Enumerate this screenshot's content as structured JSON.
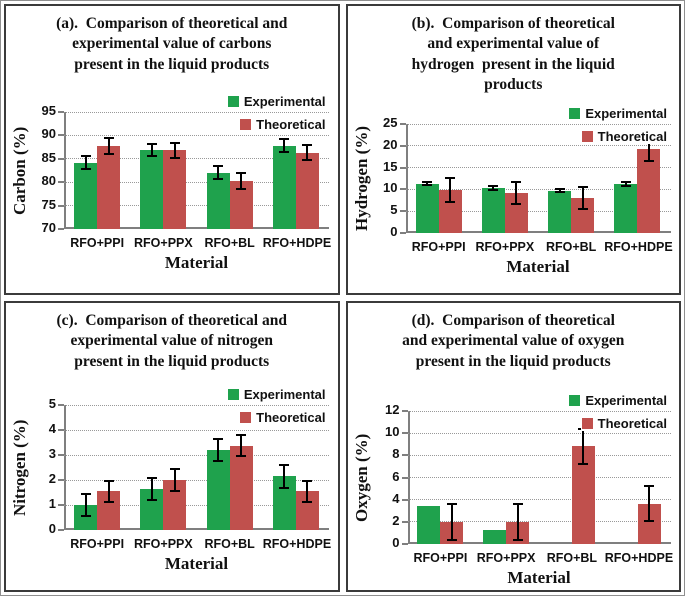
{
  "figure": {
    "legend_labels": [
      "Experimental",
      "Theoretical"
    ],
    "colors": {
      "experimental": "#1FA24D",
      "theoretical": "#C0504D",
      "error_bar": "#000000",
      "gridline": "#999999",
      "axis": "#7F7F7F",
      "panel_border": "#3B3B3B",
      "outer_border": "#8F8F8F"
    }
  },
  "chart_data": [
    {
      "id": "a",
      "type": "bar",
      "title": "(a).  Comparison of theoretical and\nexperimental value of carbons\npresent in the liquid products",
      "xlabel": "Material",
      "ylabel": "Carbon (%)",
      "ylim": [
        70,
        95
      ],
      "yticks": [
        70,
        75,
        80,
        85,
        90,
        95
      ],
      "grid": true,
      "legend_position": "top-right",
      "categories": [
        "RFO+PPI",
        "RFO+PPX",
        "RFO+BL",
        "RFO+HDPE"
      ],
      "series": [
        {
          "name": "Experimental",
          "values": [
            84.2,
            86.8,
            82.0,
            87.8
          ],
          "errors": [
            1.3,
            1.3,
            1.4,
            1.4
          ]
        },
        {
          "name": "Theoretical",
          "values": [
            87.8,
            86.8,
            80.3,
            86.3
          ],
          "errors": [
            1.7,
            1.6,
            1.7,
            1.6
          ]
        }
      ]
    },
    {
      "id": "b",
      "type": "bar",
      "title": "(b).  Comparison of theoretical\nand experimental value of\nhydrogen  present in the liquid\nproducts",
      "xlabel": "Material",
      "ylabel": "Hydrogen (%)",
      "ylim": [
        0,
        25
      ],
      "yticks": [
        0,
        5,
        10,
        15,
        20,
        25
      ],
      "grid": true,
      "legend_position": "top-right",
      "categories": [
        "RFO+PPI",
        "RFO+PPX",
        "RFO+BL",
        "RFO+HDPE"
      ],
      "series": [
        {
          "name": "Experimental",
          "values": [
            11.3,
            10.3,
            9.7,
            11.2
          ],
          "errors": [
            0.4,
            0.5,
            0.4,
            0.4
          ]
        },
        {
          "name": "Theoretical",
          "values": [
            9.9,
            9.2,
            8.0,
            19.2
          ],
          "errors": [
            2.7,
            2.6,
            2.6,
            2.6
          ]
        }
      ]
    },
    {
      "id": "c",
      "type": "bar",
      "title": "(c).  Comparison of theoretical and\nexperimental value of nitrogen\npresent in the liquid products",
      "xlabel": "Material",
      "ylabel": "Nitrogen (%)",
      "ylim": [
        0,
        5
      ],
      "yticks": [
        0,
        1,
        2,
        3,
        4,
        5
      ],
      "grid": true,
      "legend_position": "top-right",
      "categories": [
        "RFO+PPI",
        "RFO+PPX",
        "RFO+BL",
        "RFO+HDPE"
      ],
      "series": [
        {
          "name": "Experimental",
          "values": [
            1.0,
            1.65,
            3.2,
            2.15
          ],
          "errors": [
            0.45,
            0.45,
            0.45,
            0.45
          ]
        },
        {
          "name": "Theoretical",
          "values": [
            1.55,
            2.0,
            3.38,
            1.55
          ],
          "errors": [
            0.43,
            0.43,
            0.42,
            0.42
          ]
        }
      ]
    },
    {
      "id": "d",
      "type": "bar",
      "title": "(d).  Comparison of theoretical\nand experimental value of oxygen\npresent in the liquid products",
      "xlabel": "Material",
      "ylabel": "Oxygen (%)",
      "ylim": [
        0,
        12
      ],
      "yticks": [
        0,
        2,
        4,
        6,
        8,
        10,
        12
      ],
      "grid": true,
      "legend_position": "top-right",
      "categories": [
        "RFO+PPI",
        "RFO+PPX",
        "RFO+BL",
        "RFO+HDPE"
      ],
      "series": [
        {
          "name": "Experimental",
          "values": [
            3.45,
            1.25,
            0,
            0
          ],
          "errors": null
        },
        {
          "name": "Theoretical",
          "values": [
            2.0,
            2.0,
            8.8,
            3.65
          ],
          "errors": [
            1.65,
            1.65,
            1.6,
            1.6
          ]
        }
      ]
    }
  ]
}
